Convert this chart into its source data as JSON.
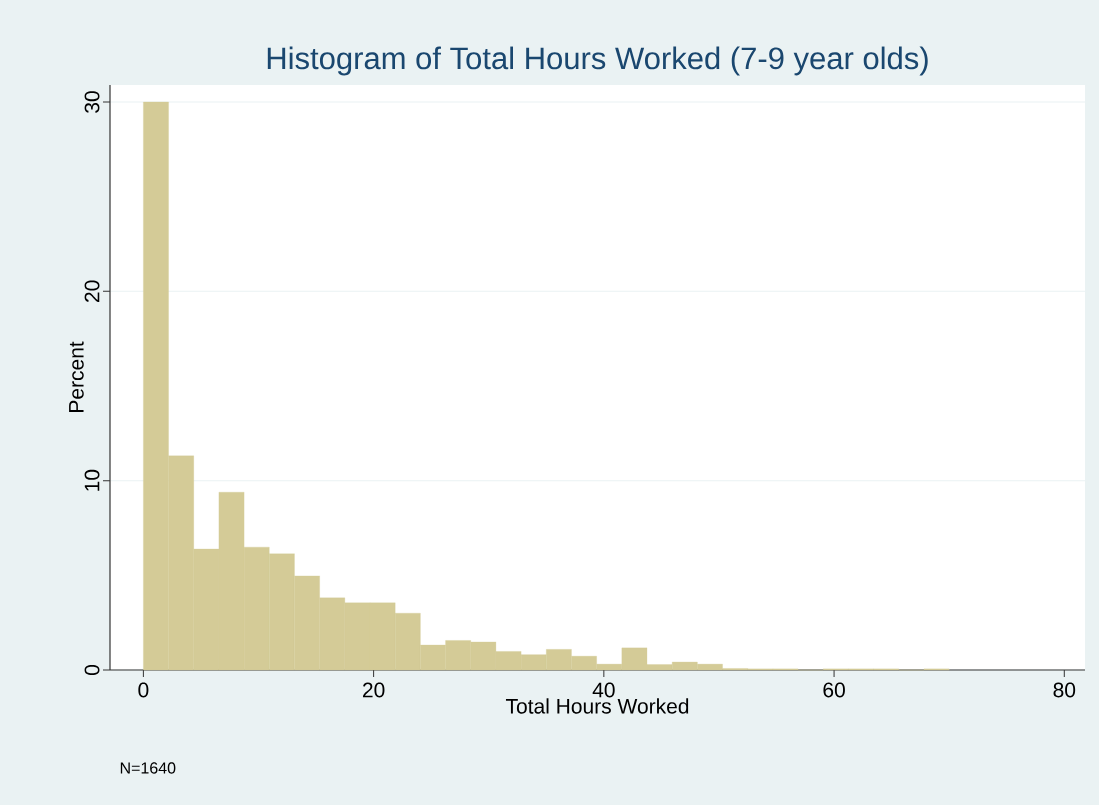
{
  "chart_data": {
    "type": "histogram",
    "title": "Histogram of Total Hours Worked (7-9 year olds)",
    "xlabel": "Total Hours Worked",
    "ylabel": "Percent",
    "annotations": [
      "N=1640"
    ],
    "bins": [
      0,
      2.1875,
      4.375,
      6.5625,
      8.75,
      10.9375,
      13.125,
      15.3125,
      17.5,
      19.6875,
      21.875,
      24.0625,
      26.25,
      28.4375,
      30.625,
      32.8125,
      35,
      37.1875,
      39.375,
      41.5625,
      43.75,
      45.9375,
      48.125,
      50.3125,
      52.5,
      54.6875,
      56.875,
      59.0625,
      61.25,
      63.4375,
      65.625,
      67.8125,
      70
    ],
    "values": [
      30.0,
      11.31,
      6.39,
      9.39,
      6.49,
      6.14,
      4.97,
      3.81,
      3.55,
      3.55,
      3.0,
      1.32,
      1.56,
      1.48,
      0.98,
      0.81,
      1.09,
      0.73,
      0.31,
      1.17,
      0.29,
      0.42,
      0.31,
      0.08,
      0.06,
      0.06,
      0,
      0.06,
      0.06,
      0.06,
      0,
      0.06
    ],
    "color": "#d4cb97",
    "xlim": [
      -2.9,
      81.8
    ],
    "ylim": [
      0,
      30.9
    ],
    "xticks": [
      0,
      20,
      40,
      60,
      80
    ],
    "yticks": [
      0,
      10,
      20,
      30
    ],
    "grid": "y"
  }
}
